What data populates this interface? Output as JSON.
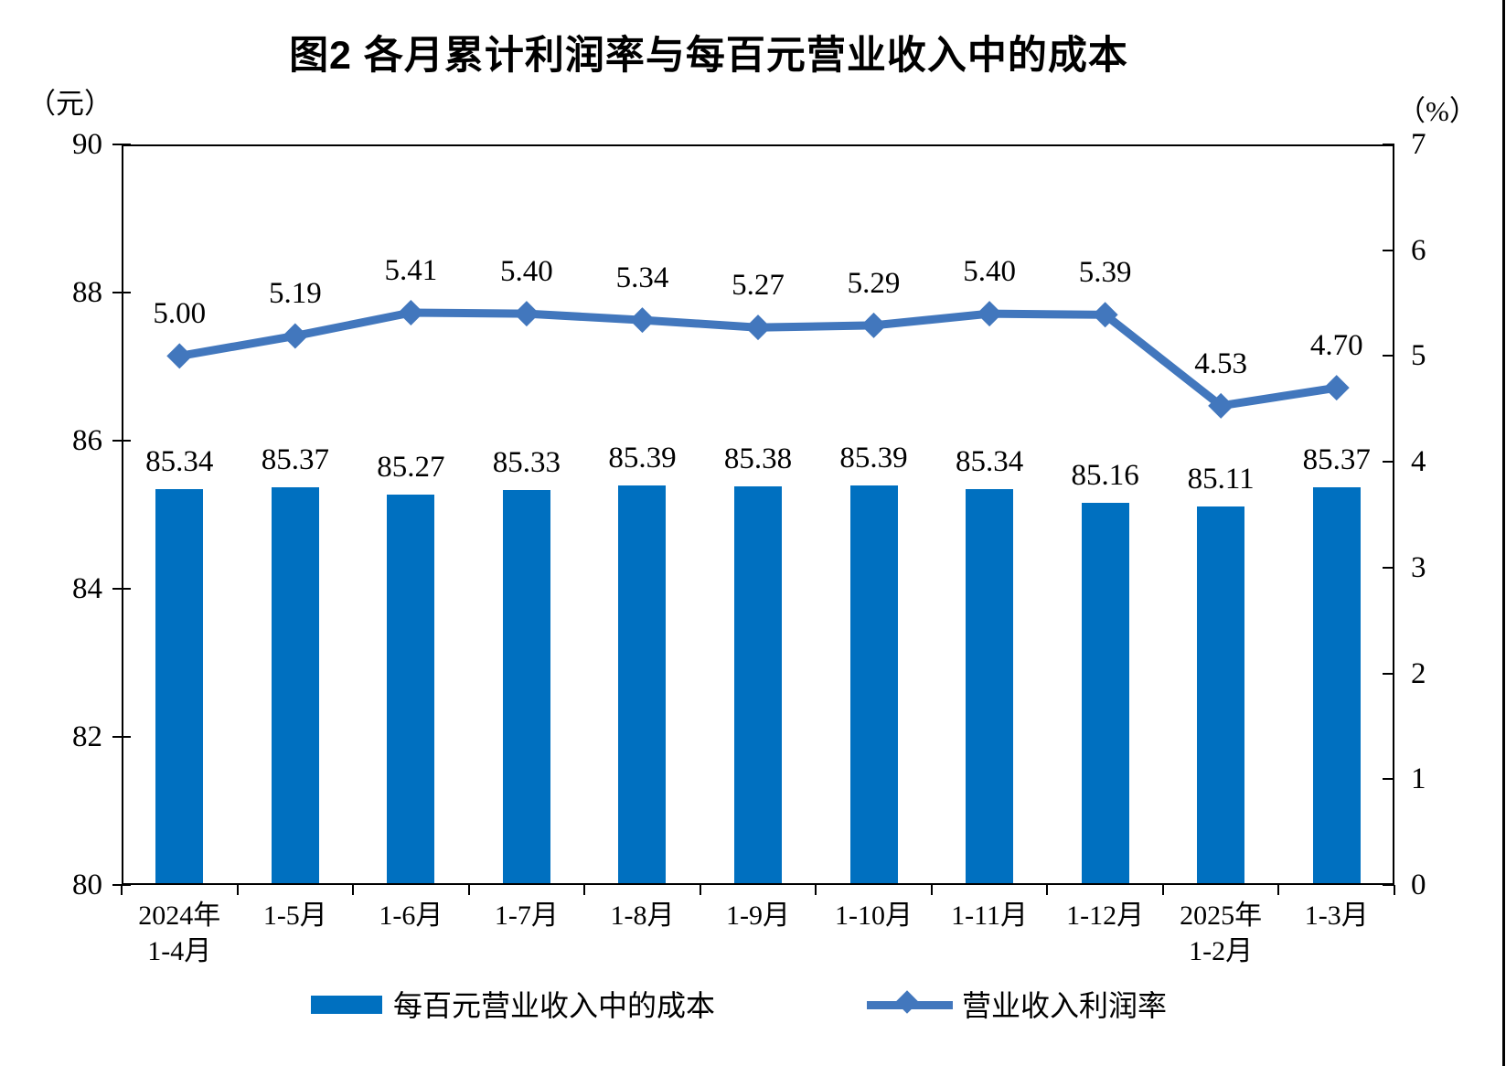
{
  "title": "图2  各月累计利润率与每百元营业收入中的成本",
  "chart_data": {
    "type": "combo-bar-line",
    "title": "图2  各月累计利润率与每百元营业收入中的成本",
    "categories": [
      "2024年\n1-4月",
      "1-5月",
      "1-6月",
      "1-7月",
      "1-8月",
      "1-9月",
      "1-10月",
      "1-11月",
      "1-12月",
      "2025年\n1-2月",
      "1-3月"
    ],
    "series": [
      {
        "name": "每百元营业收入中的成本",
        "type": "bar",
        "axis": "left",
        "color": "#0070c0",
        "values": [
          85.34,
          85.37,
          85.27,
          85.33,
          85.39,
          85.38,
          85.39,
          85.34,
          85.16,
          85.11,
          85.37
        ],
        "labels": [
          "85.34",
          "85.37",
          "85.27",
          "85.33",
          "85.39",
          "85.38",
          "85.39",
          "85.34",
          "85.16",
          "85.11",
          "85.37"
        ]
      },
      {
        "name": "营业收入利润率",
        "type": "line",
        "axis": "right",
        "color": "#4277bd",
        "marker": "diamond",
        "values": [
          5.0,
          5.19,
          5.41,
          5.4,
          5.34,
          5.27,
          5.29,
          5.4,
          5.39,
          4.53,
          4.7
        ],
        "labels": [
          "5.00",
          "5.19",
          "5.41",
          "5.40",
          "5.34",
          "5.27",
          "5.29",
          "5.40",
          "5.39",
          "4.53",
          "4.70"
        ]
      }
    ],
    "left_axis": {
      "unit": "（元）",
      "min": 80,
      "max": 90,
      "tick_step": 2,
      "ticks": [
        90,
        88,
        86,
        84,
        82,
        80
      ]
    },
    "right_axis": {
      "unit": "（%）",
      "min": 0,
      "max": 7,
      "tick_step": 1,
      "ticks": [
        7,
        6,
        5,
        4,
        3,
        2,
        1,
        0
      ]
    },
    "grid": false,
    "legend_position": "bottom"
  },
  "legend": {
    "bar_label": "每百元营业收入中的成本",
    "line_label": "营业收入利润率"
  }
}
